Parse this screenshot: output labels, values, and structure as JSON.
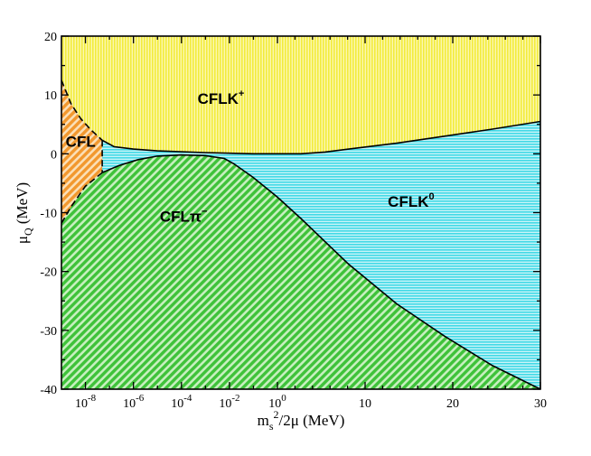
{
  "chart_data": {
    "type": "area",
    "title": "",
    "xlabel": {
      "base": "m",
      "sub": "s",
      "sup": "2",
      "rest": "/2μ  (MeV)"
    },
    "ylabel": {
      "base": "μ",
      "sub": "Q",
      "rest": "  (MeV)"
    },
    "x_axis": {
      "log_part": {
        "from_exp": -9,
        "to_exp": 0
      },
      "linear_part": {
        "range": [
          0,
          30
        ]
      },
      "ticks": [
        {
          "base": "10",
          "exp": "-8",
          "log": -8
        },
        {
          "base": "10",
          "exp": "-6",
          "log": -6
        },
        {
          "base": "10",
          "exp": "-4",
          "log": -4
        },
        {
          "base": "10",
          "exp": "-2",
          "log": -2
        },
        {
          "base": "10",
          "exp": "0",
          "log": 0
        },
        {
          "label": "10",
          "lin": 10
        },
        {
          "label": "20",
          "lin": 20
        },
        {
          "label": "30",
          "lin": 30
        }
      ]
    },
    "y_axis": {
      "range": [
        -40,
        20
      ],
      "ticks": [
        "20",
        "10",
        "0",
        "-10",
        "-20",
        "-30",
        "-40"
      ],
      "tick_values": [
        20,
        10,
        0,
        -10,
        -20,
        -30,
        -40
      ]
    },
    "regions": [
      {
        "name": "CFLK+",
        "label": "CFLK",
        "sup": "+",
        "color": "#f2ec3c",
        "pattern": "vertical-lines",
        "label_at": {
          "u": 0.333,
          "y": 8.5
        }
      },
      {
        "name": "CFLK0",
        "label": "CFLK",
        "sup": "0",
        "color": "#42d9e6",
        "pattern": "horizontal-lines",
        "label_at": {
          "u": 0.73,
          "y": -9
        }
      },
      {
        "name": "CFLpi-",
        "label": "CFLπ",
        "sup": "−",
        "color": "#3fc23a",
        "pattern": "diagonal-lines",
        "label_at": {
          "u": 0.255,
          "y": -11.5
        }
      },
      {
        "name": "CFL",
        "label": "CFL",
        "sup": "",
        "color": "#f2982e",
        "pattern": "diagonal-lines",
        "label_at": {
          "u": 0.04,
          "y": 1.2
        }
      }
    ],
    "boundaries": {
      "upper_solid": [
        {
          "u": 0.085,
          "y": 2.3
        },
        {
          "u": 0.11,
          "y": 1.2
        },
        {
          "u": 0.15,
          "y": 0.8
        },
        {
          "u": 0.2,
          "y": 0.5
        },
        {
          "u": 0.3,
          "y": 0.2
        },
        {
          "u": 0.4,
          "y": 0.0
        },
        {
          "u": 0.5,
          "y": 0.0
        },
        {
          "u": 0.55,
          "y": 0.3
        },
        {
          "u": 0.6,
          "y": 0.8
        },
        {
          "u": 0.7,
          "y": 1.8
        },
        {
          "u": 0.8,
          "y": 3.0
        },
        {
          "u": 0.9,
          "y": 4.2
        },
        {
          "u": 1.0,
          "y": 5.5
        }
      ],
      "upper_dashed": [
        {
          "u": 0.0,
          "y": 12.5
        },
        {
          "u": 0.02,
          "y": 8.5
        },
        {
          "u": 0.04,
          "y": 6.0
        },
        {
          "u": 0.06,
          "y": 4.2
        },
        {
          "u": 0.085,
          "y": 2.3
        }
      ],
      "lower_solid": [
        {
          "u": 0.0,
          "y": -11.8
        },
        {
          "u": 0.02,
          "y": -9.0
        },
        {
          "u": 0.05,
          "y": -5.5
        },
        {
          "u": 0.085,
          "y": -3.2
        },
        {
          "u": 0.12,
          "y": -2.0
        },
        {
          "u": 0.16,
          "y": -1.0
        },
        {
          "u": 0.2,
          "y": -0.4
        },
        {
          "u": 0.25,
          "y": -0.2
        },
        {
          "u": 0.3,
          "y": -0.3
        },
        {
          "u": 0.34,
          "y": -0.8
        },
        {
          "u": 0.36,
          "y": -1.7
        },
        {
          "u": 0.4,
          "y": -4.0
        },
        {
          "u": 0.45,
          "y": -7.3
        },
        {
          "u": 0.5,
          "y": -11.0
        },
        {
          "u": 0.55,
          "y": -14.9
        },
        {
          "u": 0.6,
          "y": -18.8
        },
        {
          "u": 0.7,
          "y": -25.5
        },
        {
          "u": 0.8,
          "y": -31.0
        },
        {
          "u": 0.9,
          "y": -36.0
        },
        {
          "u": 1.0,
          "y": -40.0
        }
      ],
      "lower_dashed": [
        {
          "u": 0.0,
          "y": -11.8
        },
        {
          "u": 0.02,
          "y": -9.0
        },
        {
          "u": 0.05,
          "y": -5.5
        },
        {
          "u": 0.085,
          "y": -3.2
        }
      ],
      "cfl_right_edge": [
        {
          "u": 0.085,
          "y": 2.3
        },
        {
          "u": 0.085,
          "y": -3.2
        }
      ]
    }
  }
}
